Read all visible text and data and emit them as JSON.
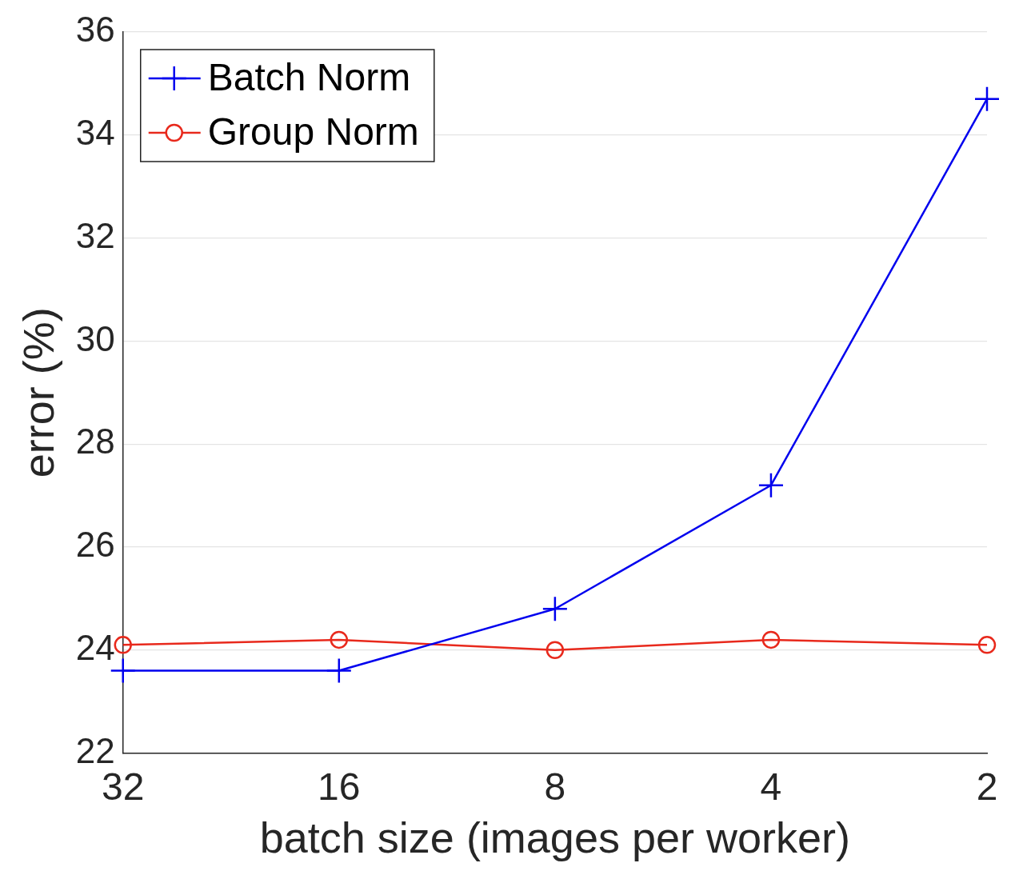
{
  "chart_data": {
    "type": "line",
    "xlabel": "batch size (images per worker)",
    "ylabel": "error (%)",
    "categories": [
      "32",
      "16",
      "8",
      "4",
      "2"
    ],
    "series": [
      {
        "name": "Batch Norm",
        "color": "#0000ee",
        "marker": "cross",
        "values": [
          23.6,
          23.6,
          24.8,
          27.2,
          34.7
        ]
      },
      {
        "name": "Group Norm",
        "color": "#e8291c",
        "marker": "circle",
        "values": [
          24.1,
          24.2,
          24.0,
          24.2,
          24.1
        ]
      }
    ],
    "ylim": [
      22,
      36
    ],
    "yticks": [
      22,
      24,
      26,
      28,
      30,
      32,
      34,
      36
    ],
    "grid": "y",
    "legend": "top left",
    "line_style": "solid"
  }
}
